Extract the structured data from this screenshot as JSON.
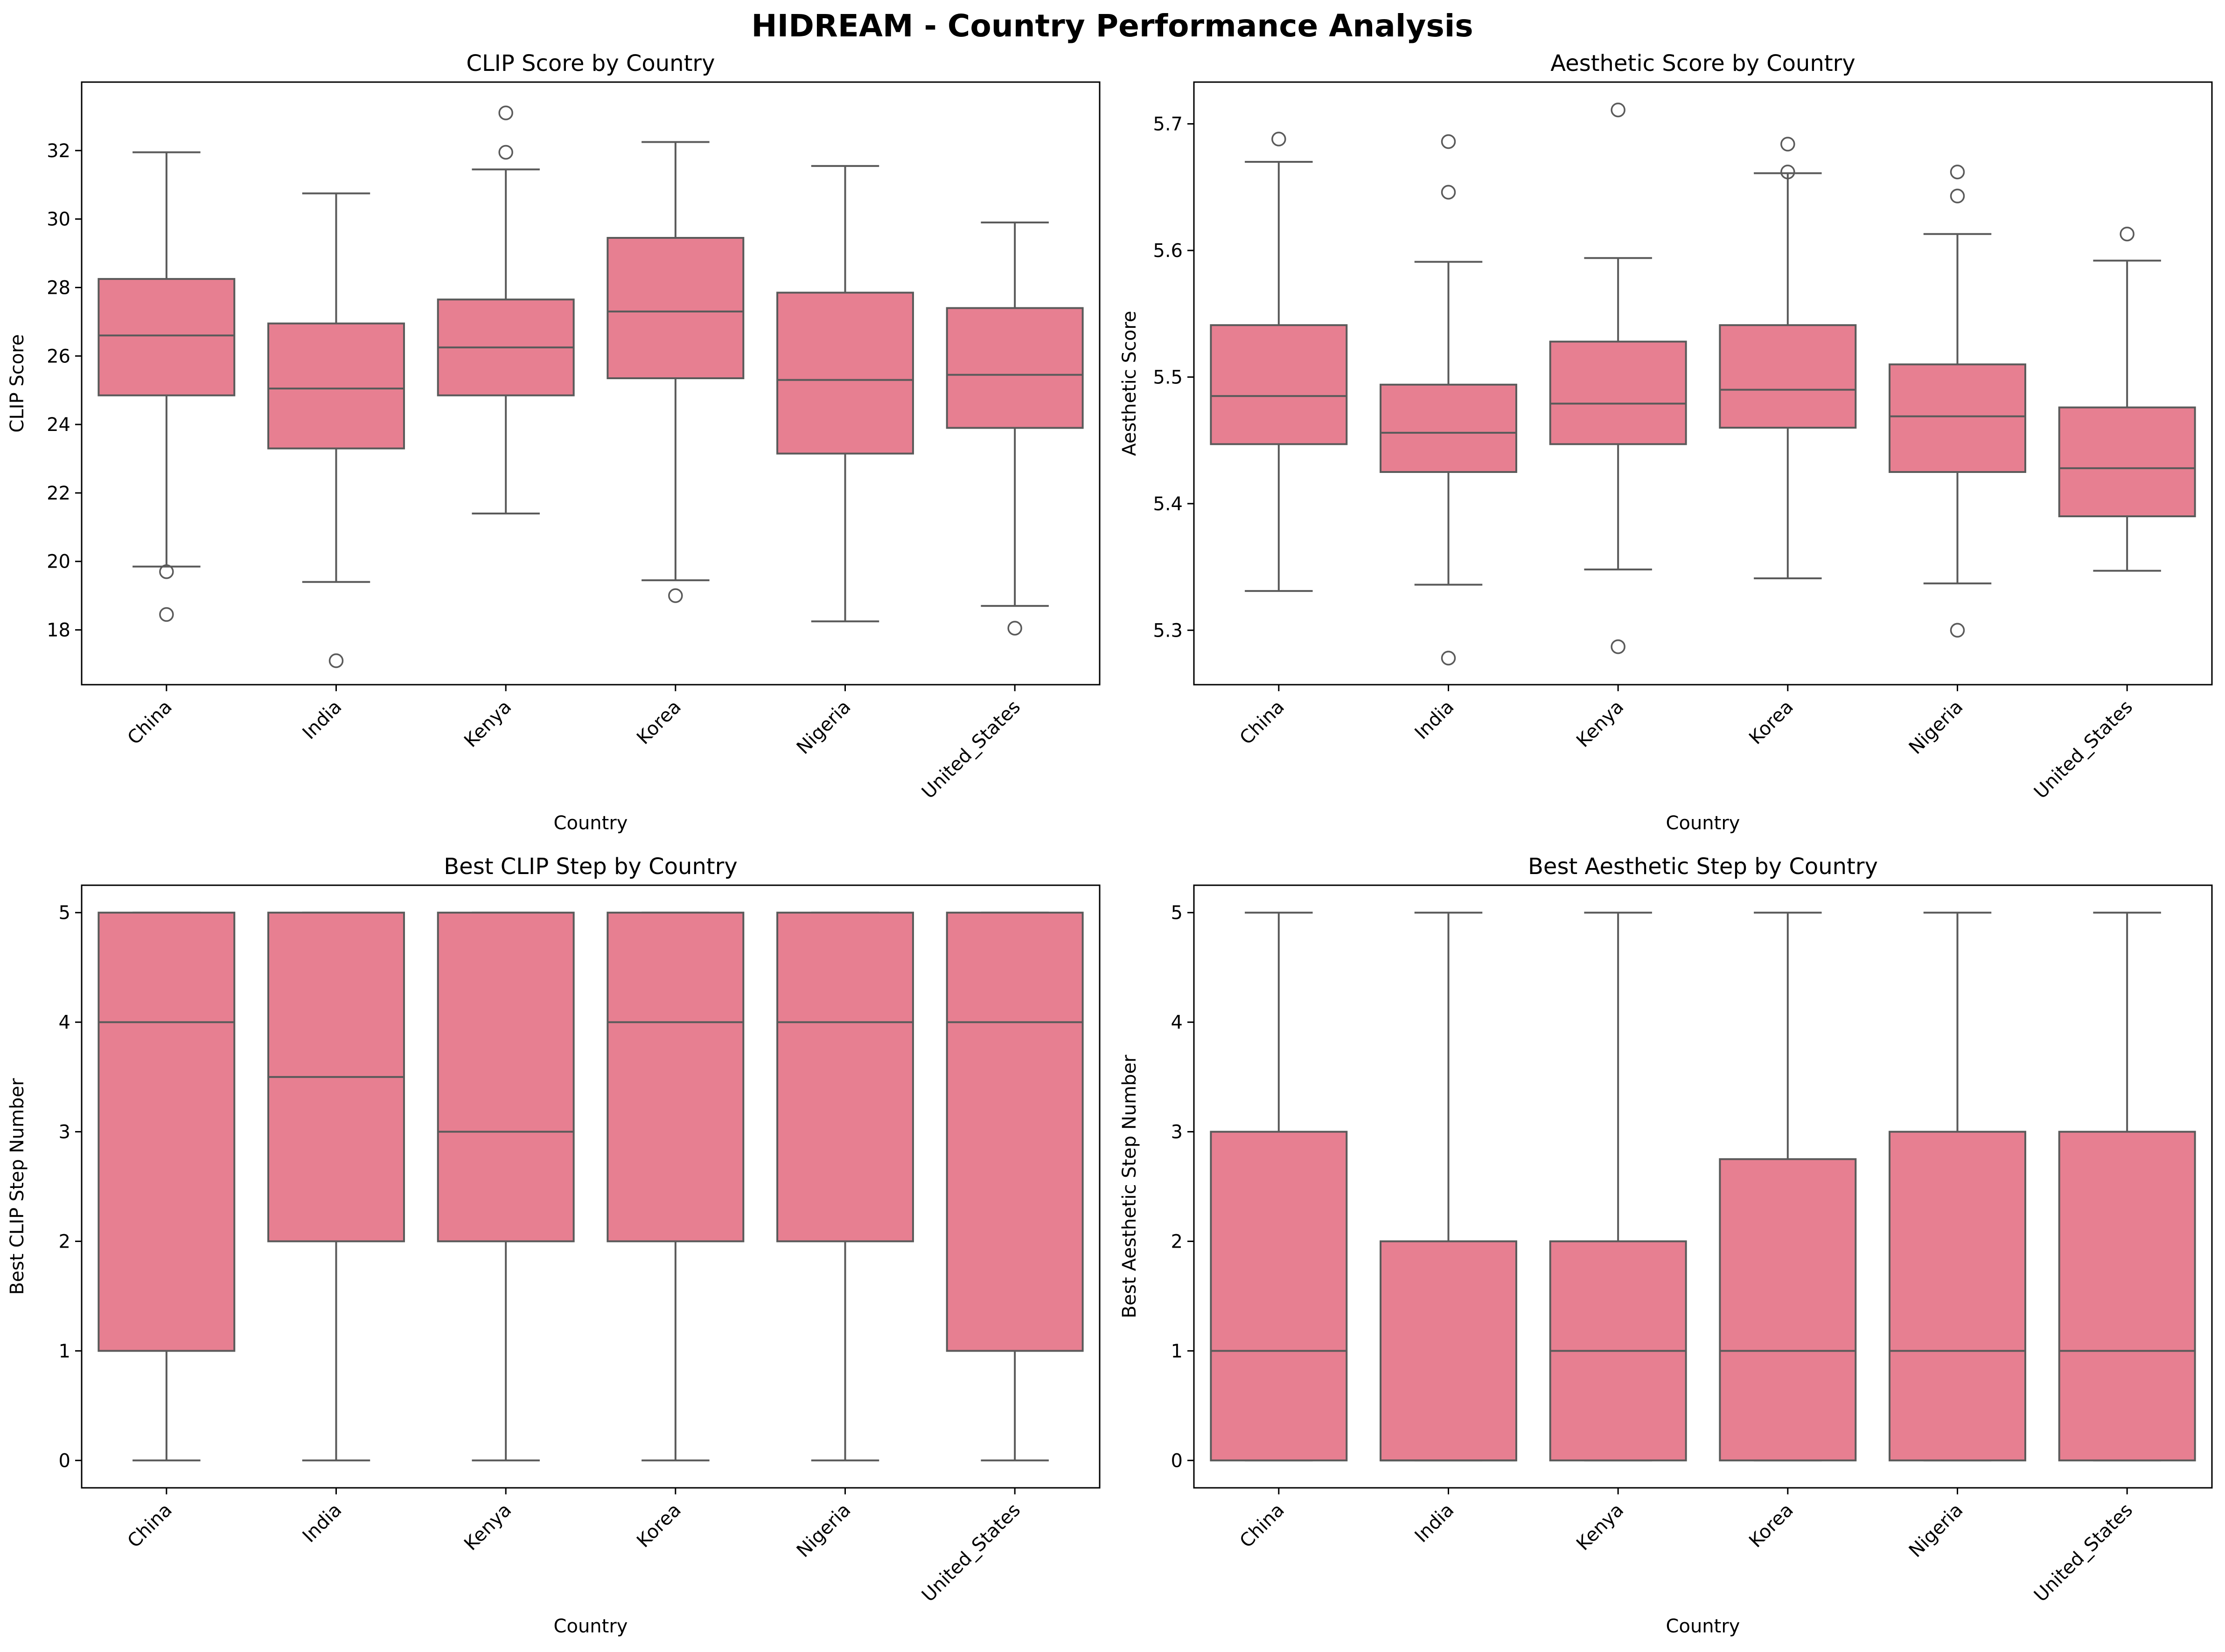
{
  "figure": {
    "suptitle": "HIDREAM - Country Performance Analysis"
  },
  "colors": {
    "box_fill": "#e77f91",
    "line": "#5a5a5a",
    "axes": "#000000"
  },
  "chart_data": [
    {
      "type": "box",
      "title": "CLIP Score by Country",
      "xlabel": "Country",
      "ylabel": "CLIP Score",
      "categories": [
        "China",
        "India",
        "Kenya",
        "Korea",
        "Nigeria",
        "United_States"
      ],
      "ylim": [
        16.4,
        34.0
      ],
      "yticks": [
        18,
        20,
        22,
        24,
        26,
        28,
        30,
        32
      ],
      "boxes": [
        {
          "q1": 24.85,
          "median": 26.6,
          "q3": 28.25,
          "whislo": 19.85,
          "whishi": 31.95,
          "fliers": [
            19.7,
            18.45
          ]
        },
        {
          "q1": 23.3,
          "median": 25.05,
          "q3": 26.95,
          "whislo": 19.4,
          "whishi": 30.75,
          "fliers": [
            17.1
          ]
        },
        {
          "q1": 24.85,
          "median": 26.25,
          "q3": 27.65,
          "whislo": 21.4,
          "whishi": 31.45,
          "fliers": [
            33.1,
            31.95
          ]
        },
        {
          "q1": 25.35,
          "median": 27.3,
          "q3": 29.45,
          "whislo": 19.45,
          "whishi": 32.25,
          "fliers": [
            19.0
          ]
        },
        {
          "q1": 23.15,
          "median": 25.3,
          "q3": 27.85,
          "whislo": 18.25,
          "whishi": 31.55,
          "fliers": []
        },
        {
          "q1": 23.9,
          "median": 25.45,
          "q3": 27.4,
          "whislo": 18.7,
          "whishi": 29.9,
          "fliers": [
            18.05
          ]
        }
      ]
    },
    {
      "type": "box",
      "title": "Aesthetic Score by Country",
      "xlabel": "Country",
      "ylabel": "Aesthetic Score",
      "categories": [
        "China",
        "India",
        "Kenya",
        "Korea",
        "Nigeria",
        "United_States"
      ],
      "ylim": [
        5.257,
        5.733
      ],
      "yticks": [
        "5.3",
        "5.4",
        "5.5",
        "5.6",
        "5.7"
      ],
      "boxes": [
        {
          "q1": 5.447,
          "median": 5.485,
          "q3": 5.541,
          "whislo": 5.331,
          "whishi": 5.67,
          "fliers": [
            5.688
          ]
        },
        {
          "q1": 5.425,
          "median": 5.456,
          "q3": 5.494,
          "whislo": 5.336,
          "whishi": 5.591,
          "fliers": [
            5.686,
            5.646,
            5.278
          ]
        },
        {
          "q1": 5.447,
          "median": 5.479,
          "q3": 5.528,
          "whislo": 5.348,
          "whishi": 5.594,
          "fliers": [
            5.711,
            5.287
          ]
        },
        {
          "q1": 5.46,
          "median": 5.49,
          "q3": 5.541,
          "whislo": 5.341,
          "whishi": 5.661,
          "fliers": [
            5.684,
            5.662
          ]
        },
        {
          "q1": 5.425,
          "median": 5.469,
          "q3": 5.51,
          "whislo": 5.337,
          "whishi": 5.613,
          "fliers": [
            5.662,
            5.643,
            5.3
          ]
        },
        {
          "q1": 5.39,
          "median": 5.428,
          "q3": 5.476,
          "whislo": 5.347,
          "whishi": 5.592,
          "fliers": [
            5.613
          ]
        }
      ]
    },
    {
      "type": "box",
      "title": "Best CLIP Step by Country",
      "xlabel": "Country",
      "ylabel": "Best CLIP Step Number",
      "categories": [
        "China",
        "India",
        "Kenya",
        "Korea",
        "Nigeria",
        "United_States"
      ],
      "ylim": [
        -0.25,
        5.25
      ],
      "yticks": [
        0,
        1,
        2,
        3,
        4,
        5
      ],
      "boxes": [
        {
          "q1": 1,
          "median": 4,
          "q3": 5,
          "whislo": 0,
          "whishi": 5,
          "fliers": []
        },
        {
          "q1": 2,
          "median": 3.5,
          "q3": 5,
          "whislo": 0,
          "whishi": 5,
          "fliers": []
        },
        {
          "q1": 2,
          "median": 3,
          "q3": 5,
          "whislo": 0,
          "whishi": 5,
          "fliers": []
        },
        {
          "q1": 2,
          "median": 4,
          "q3": 5,
          "whislo": 0,
          "whishi": 5,
          "fliers": []
        },
        {
          "q1": 2,
          "median": 4,
          "q3": 5,
          "whislo": 0,
          "whishi": 5,
          "fliers": []
        },
        {
          "q1": 1,
          "median": 4,
          "q3": 5,
          "whislo": 0,
          "whishi": 5,
          "fliers": []
        }
      ]
    },
    {
      "type": "box",
      "title": "Best Aesthetic Step by Country",
      "xlabel": "Country",
      "ylabel": "Best Aesthetic Step Number",
      "categories": [
        "China",
        "India",
        "Kenya",
        "Korea",
        "Nigeria",
        "United_States"
      ],
      "ylim": [
        -0.25,
        5.25
      ],
      "yticks": [
        0,
        1,
        2,
        3,
        4,
        5
      ],
      "boxes": [
        {
          "q1": 0,
          "median": 1,
          "q3": 3,
          "whislo": 0,
          "whishi": 5,
          "fliers": []
        },
        {
          "q1": 0,
          "median": 0,
          "q3": 2,
          "whislo": 0,
          "whishi": 5,
          "fliers": []
        },
        {
          "q1": 0,
          "median": 1,
          "q3": 2,
          "whislo": 0,
          "whishi": 5,
          "fliers": []
        },
        {
          "q1": 0,
          "median": 1,
          "q3": 2.75,
          "whislo": 0,
          "whishi": 5,
          "fliers": []
        },
        {
          "q1": 0,
          "median": 1,
          "q3": 3,
          "whislo": 0,
          "whishi": 5,
          "fliers": []
        },
        {
          "q1": 0,
          "median": 1,
          "q3": 3,
          "whislo": 0,
          "whishi": 5,
          "fliers": []
        }
      ]
    }
  ]
}
